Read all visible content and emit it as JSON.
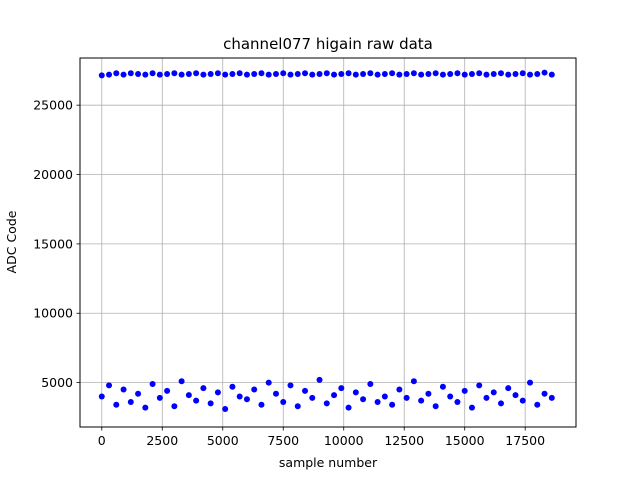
{
  "chart_data": {
    "type": "scatter",
    "title": "channel077 higain raw data",
    "xlabel": "sample number",
    "ylabel": "ADC Code",
    "xlim": [
      -900,
      19600
    ],
    "ylim": [
      1800,
      28400
    ],
    "grid": true,
    "marker_color": "#0000ff",
    "x_ticks": [
      0,
      2500,
      5000,
      7500,
      10000,
      12500,
      15000,
      17500
    ],
    "x_tick_labels": [
      "0",
      "2500",
      "5000",
      "7500",
      "10000",
      "12500",
      "15000",
      "17500"
    ],
    "y_ticks": [
      5000,
      10000,
      15000,
      20000,
      25000
    ],
    "y_tick_labels": [
      "5000",
      "10000",
      "15000",
      "20000",
      "25000"
    ],
    "series": [
      {
        "x": [
          0,
          300,
          600,
          900,
          1200,
          1500,
          1800,
          2100,
          2400,
          2700,
          3000,
          3300,
          3600,
          3900,
          4200,
          4500,
          4800,
          5100,
          5400,
          5700,
          6000,
          6300,
          6600,
          6900,
          7200,
          7500,
          7800,
          8100,
          8400,
          8700,
          9000,
          9300,
          9600,
          9900,
          10200,
          10500,
          10800,
          11100,
          11400,
          11700,
          12000,
          12300,
          12600,
          12900,
          13200,
          13500,
          13800,
          14100,
          14400,
          14700,
          15000,
          15300,
          15600,
          15900,
          16200,
          16500,
          16800,
          17100,
          17400,
          17700,
          18000,
          18300,
          18600
        ],
        "y": [
          27150,
          27200,
          27300,
          27200,
          27300,
          27250,
          27200,
          27300,
          27200,
          27250,
          27300,
          27200,
          27250,
          27300,
          27200,
          27250,
          27300,
          27200,
          27250,
          27300,
          27200,
          27250,
          27300,
          27200,
          27250,
          27300,
          27200,
          27250,
          27300,
          27200,
          27250,
          27300,
          27200,
          27250,
          27300,
          27200,
          27250,
          27300,
          27200,
          27250,
          27300,
          27200,
          27250,
          27300,
          27200,
          27250,
          27300,
          27200,
          27250,
          27300,
          27200,
          27250,
          27300,
          27200,
          27250,
          27300,
          27200,
          27250,
          27300,
          27200,
          27250,
          27350,
          27200
        ]
      },
      {
        "x": [
          0,
          300,
          600,
          900,
          1200,
          1500,
          1800,
          2100,
          2400,
          2700,
          3000,
          3300,
          3600,
          3900,
          4200,
          4500,
          4800,
          5100,
          5400,
          5700,
          6000,
          6300,
          6600,
          6900,
          7200,
          7500,
          7800,
          8100,
          8400,
          8700,
          9000,
          9300,
          9600,
          9900,
          10200,
          10500,
          10800,
          11100,
          11400,
          11700,
          12000,
          12300,
          12600,
          12900,
          13200,
          13500,
          13800,
          14100,
          14400,
          14700,
          15000,
          15300,
          15600,
          15900,
          16200,
          16500,
          16800,
          17100,
          17400,
          17700,
          18000,
          18300,
          18600
        ],
        "y": [
          4000,
          4800,
          3400,
          4500,
          3600,
          4200,
          3200,
          4900,
          3900,
          4400,
          3300,
          5100,
          4100,
          3700,
          4600,
          3500,
          4300,
          3100,
          4700,
          4000,
          3800,
          4500,
          3400,
          5000,
          4200,
          3600,
          4800,
          3300,
          4400,
          3900,
          5200,
          3500,
          4100,
          4600,
          3200,
          4300,
          3800,
          4900,
          3600,
          4000,
          3400,
          4500,
          3900,
          5100,
          3700,
          4200,
          3300,
          4700,
          4000,
          3600,
          4400,
          3200,
          4800,
          3900,
          4300,
          3500,
          4600,
          4100,
          3700,
          5000,
          3400,
          4200,
          3900
        ]
      }
    ]
  }
}
